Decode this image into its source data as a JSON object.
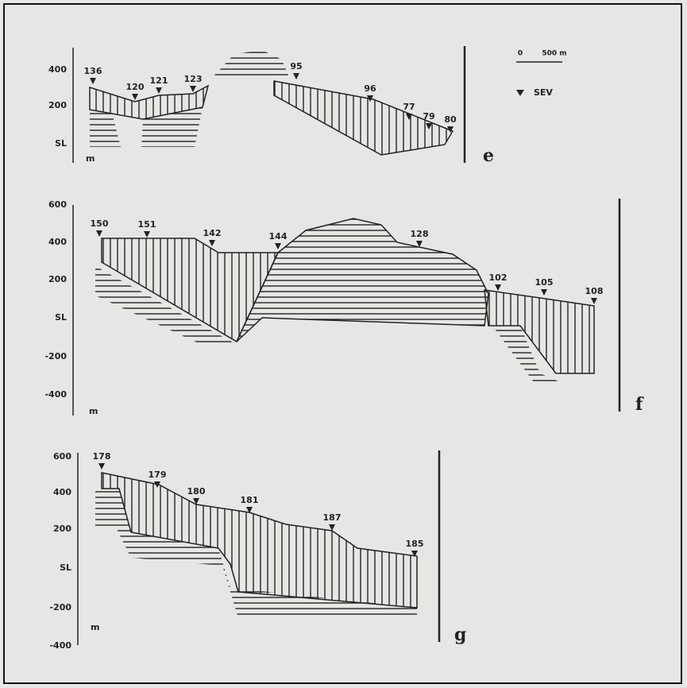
{
  "panels": [
    {
      "letter": "e",
      "axis_labels": [
        "400",
        "200",
        "SL"
      ],
      "unit": "m",
      "stations": [
        "136",
        "120",
        "121",
        "123",
        "95",
        "96",
        "77",
        "79",
        "80"
      ]
    },
    {
      "letter": "f",
      "axis_labels": [
        "600",
        "400",
        "200",
        "SL",
        "-200",
        "-400"
      ],
      "unit": "m",
      "stations": [
        "150",
        "151",
        "142",
        "144",
        "128",
        "102",
        "105",
        "108"
      ]
    },
    {
      "letter": "g",
      "axis_labels": [
        "600",
        "400",
        "200",
        "SL",
        "-200",
        "-400"
      ],
      "unit": "m",
      "stations": [
        "178",
        "179",
        "180",
        "181",
        "187",
        "185"
      ]
    }
  ],
  "legend": {
    "scale_start": "0",
    "scale_end": "500 m",
    "marker_label": "SEV"
  }
}
